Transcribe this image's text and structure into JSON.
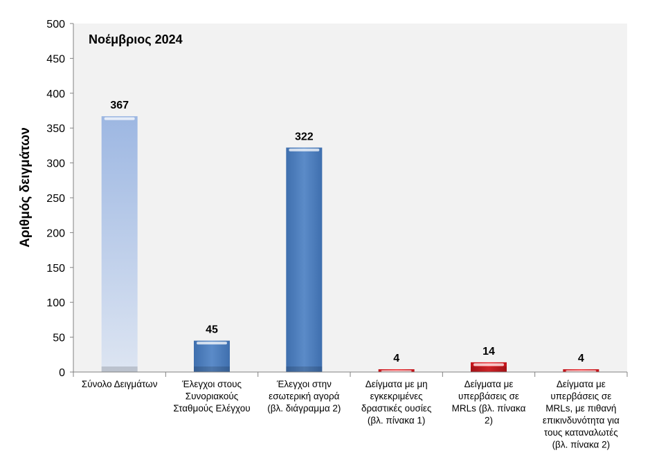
{
  "chart_data": {
    "type": "bar",
    "title": "Νοέμβριος 2024",
    "xlabel": "",
    "ylabel": "Αριθμός δειγμάτων",
    "ylim": [
      0,
      500
    ],
    "yticks": [
      0,
      50,
      100,
      150,
      200,
      250,
      300,
      350,
      400,
      450,
      500
    ],
    "grid": false,
    "categories": [
      [
        "Σύνολο Δειγμάτων"
      ],
      [
        "Έλεγχοι στους",
        "Συνοριακούς",
        "Σταθμούς Ελέγχου"
      ],
      [
        "Έλεγχοι στην",
        "εσωτερική αγορά",
        "(βλ. διάγραμμα 2)"
      ],
      [
        "Δείγματα με μη",
        "εγκεκριμένες",
        "δραστικές ουσίες",
        "(βλ. πίνακα 1)"
      ],
      [
        "Δείγματα με",
        "υπερβάσεις σε",
        "MRLs (βλ. πίνακα",
        "2)"
      ],
      [
        "Δείγματα με",
        "υπερβάσεις σε",
        "MRLs, με πιθανή",
        "επικινδυνότητα για",
        "τους καταναλωτές",
        "(βλ. πίνακα 2)"
      ]
    ],
    "values": [
      367,
      45,
      322,
      4,
      14,
      4
    ],
    "data_labels": [
      "367",
      "45",
      "322",
      "4",
      "14",
      "4"
    ],
    "colors": [
      "#a9bddf",
      "#4f81bd",
      "#4f81bd",
      "#e0191f",
      "#e0191f",
      "#e0191f"
    ]
  }
}
